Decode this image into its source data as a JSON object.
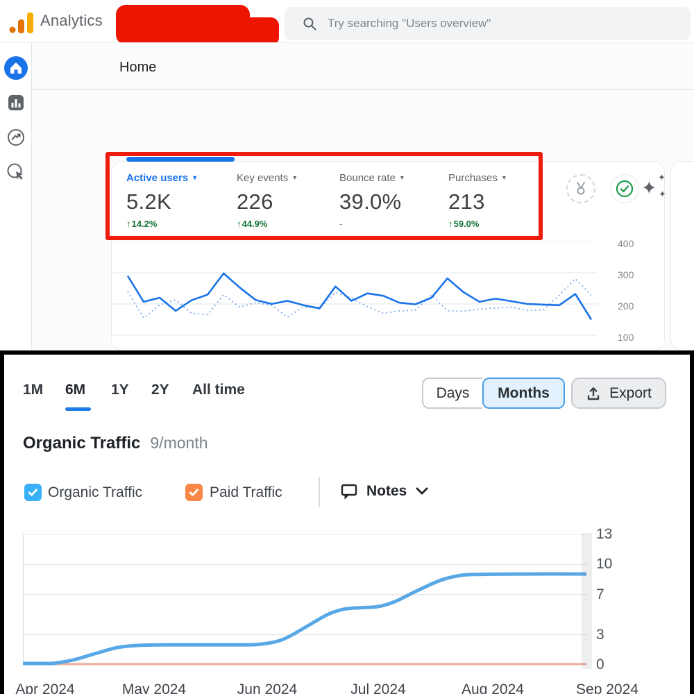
{
  "ga": {
    "brand": "Analytics",
    "search": {
      "placeholder": "Try searching \"Users overview\""
    },
    "page_title": "Home",
    "sidebar_items": [
      {
        "name": "home",
        "selected": true
      },
      {
        "name": "reports",
        "selected": false
      },
      {
        "name": "explore",
        "selected": false
      },
      {
        "name": "advertising",
        "selected": false
      }
    ],
    "metrics": [
      {
        "label": "Active users",
        "value": "5.2K",
        "delta": "14.2%",
        "direction": "up",
        "selected": true
      },
      {
        "label": "Key events",
        "value": "226",
        "delta": "44.9%",
        "direction": "up",
        "selected": false
      },
      {
        "label": "Bounce rate",
        "value": "39.0%",
        "delta": "-",
        "direction": "none",
        "selected": false
      },
      {
        "label": "Purchases",
        "value": "213",
        "delta": "59.0%",
        "direction": "up",
        "selected": false
      }
    ],
    "accent_color": "#1a73e8",
    "delta_up_color": "#137333",
    "annotation_color": "#ee1c0d"
  },
  "seo": {
    "range_tabs": [
      {
        "label": "1M",
        "active": false
      },
      {
        "label": "6M",
        "active": true
      },
      {
        "label": "1Y",
        "active": false
      },
      {
        "label": "2Y",
        "active": false
      },
      {
        "label": "All time",
        "active": false
      }
    ],
    "view_toggle": [
      {
        "label": "Days",
        "active": false
      },
      {
        "label": "Months",
        "active": true
      }
    ],
    "export_label": "Export",
    "title": "Organic Traffic",
    "subtitle": "9/month",
    "legend": [
      {
        "label": "Organic Traffic",
        "color": "#38b1f8",
        "checked": true
      },
      {
        "label": "Paid Traffic",
        "color": "#fa8748",
        "checked": true
      }
    ],
    "notes_label": "Notes"
  },
  "chart_data": [
    {
      "id": "ga-active-users-trend",
      "type": "line",
      "yticks": [
        400,
        300,
        200,
        100
      ],
      "ylim": [
        100,
        400
      ],
      "grid": true,
      "legend_position": "none",
      "series": [
        {
          "name": "current period",
          "style": "solid",
          "color": "#1a73e8",
          "values": [
            290,
            207,
            220,
            178,
            212,
            230,
            298,
            253,
            213,
            200,
            210,
            196,
            186,
            256,
            210,
            234,
            226,
            204,
            199,
            220,
            282,
            238,
            207,
            217,
            209,
            200,
            198,
            196,
            232,
            150
          ]
        },
        {
          "name": "previous period",
          "style": "dashed",
          "color": "#7fa9ea",
          "values": [
            240,
            155,
            197,
            213,
            170,
            166,
            230,
            190,
            204,
            196,
            158,
            191,
            186,
            237,
            219,
            191,
            170,
            178,
            180,
            229,
            178,
            177,
            184,
            187,
            190,
            179,
            181,
            228,
            281,
            228
          ]
        }
      ]
    },
    {
      "id": "organic-traffic-6m",
      "type": "line",
      "title": "Organic Traffic",
      "x_labels": [
        "Apr 2024",
        "May 2024",
        "Jun 2024",
        "Jul 2024",
        "Aug 2024",
        "Sep 2024"
      ],
      "monthly_values": [
        0,
        2,
        2,
        6,
        9,
        9
      ],
      "yticks": [
        13,
        10,
        7,
        3,
        0
      ],
      "ylim": [
        0,
        13
      ],
      "grid": true,
      "series": [
        {
          "name": "Organic Traffic",
          "color": "#58a8e6",
          "points": [
            [
              0,
              0.05
            ],
            [
              0.05,
              0.12
            ],
            [
              0.09,
              0.5
            ],
            [
              0.13,
              1.15
            ],
            [
              0.17,
              1.75
            ],
            [
              0.21,
              1.95
            ],
            [
              0.26,
              2.0
            ],
            [
              0.32,
              2.0
            ],
            [
              0.38,
              2.0
            ],
            [
              0.42,
              2.05
            ],
            [
              0.46,
              2.5
            ],
            [
              0.5,
              3.7
            ],
            [
              0.54,
              5.0
            ],
            [
              0.57,
              5.55
            ],
            [
              0.6,
              5.7
            ],
            [
              0.63,
              5.8
            ],
            [
              0.66,
              6.3
            ],
            [
              0.7,
              7.4
            ],
            [
              0.74,
              8.4
            ],
            [
              0.77,
              8.85
            ],
            [
              0.8,
              9.0
            ],
            [
              0.88,
              9.05
            ],
            [
              1,
              9.05
            ]
          ]
        },
        {
          "name": "Paid Traffic",
          "color": "#eab09a",
          "points": [
            [
              0,
              0
            ],
            [
              1,
              0
            ]
          ]
        }
      ]
    }
  ]
}
